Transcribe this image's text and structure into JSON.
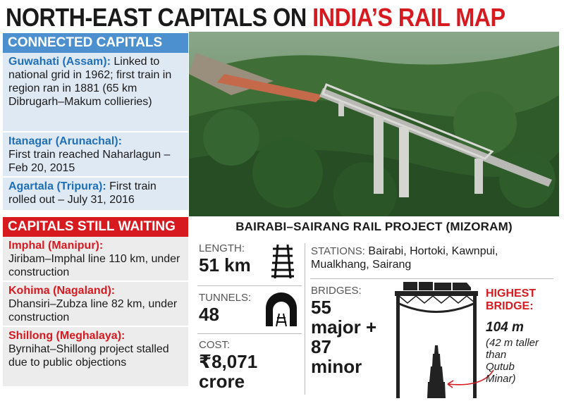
{
  "title": {
    "part1": "NORTH-EAST CAPITALS ON ",
    "part2": "INDIA’S RAIL MAP"
  },
  "connected": {
    "heading": "CONNECTED CAPITALS",
    "items": [
      {
        "name": "Guwahati (Assam):",
        "text": "Linked to national grid in 1962; first train in region ran in 1881 (65 km Dibrugarh–Makum collieries)"
      },
      {
        "name": "Itanagar (Arunachal):",
        "text": "First train reached Naharlagun – Feb 20, 2015"
      },
      {
        "name": "Agartala (Tripura):",
        "text": "First train rolled out – July 31, 2016"
      }
    ]
  },
  "waiting": {
    "heading": "CAPITALS STILL WAITING",
    "items": [
      {
        "name": "Imphal (Manipur):",
        "text": "Jiribam–Imphal line 110 km, under construction"
      },
      {
        "name": "Kohima (Nagaland):",
        "text": "Dhansiri–Zubza line 82 km, under construction"
      },
      {
        "name": "Shillong (Meghalaya):",
        "text": "Byrnihat–Shillong project stalled due to public objections"
      }
    ]
  },
  "project": {
    "title": "BAIRABI–SAIRANG RAIL PROJECT (MIZORAM)",
    "length": {
      "label": "LENGTH:",
      "value": "51 km"
    },
    "tunnels": {
      "label": "TUNNELS:",
      "value": "48"
    },
    "cost": {
      "label": "COST:",
      "value1": "₹8,071",
      "value2": "crore"
    },
    "stations": {
      "label": "STATIONS:",
      "text": "Bairabi, Hortoki, Kawnpui, Mualkhang, Sairang"
    },
    "bridges": {
      "label": "BRIDGES:",
      "line1": "55",
      "line2": "major +",
      "line3": "87",
      "line4": "minor"
    },
    "highest": {
      "line1": "HIGHEST",
      "line2": "BRIDGE:",
      "value": "104 m",
      "note1": "(42 m taller",
      "note2": "than",
      "note3": "Qutub",
      "note4": "Minar)"
    }
  },
  "colors": {
    "red": "#d71920",
    "blue": "#4c90cf"
  },
  "icons": [
    "rail-track-icon",
    "tunnel-icon",
    "bridge-train-icon",
    "qutub-minar-icon"
  ]
}
